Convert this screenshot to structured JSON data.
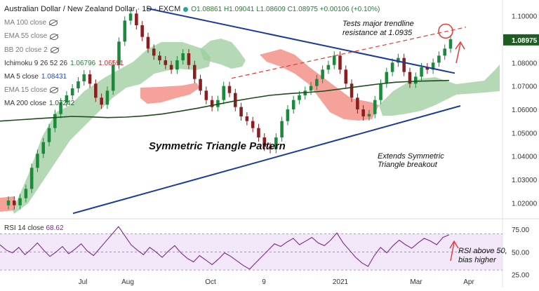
{
  "header": {
    "symbol_title": "Australian Dollar / New Zealand Dollar · 1D · FXCM",
    "ohlc": "O1.08861 H1.09041 L1.08609 C1.08975 +0.00106 (+0.10%)"
  },
  "indicators": [
    {
      "label": "MA 100 close",
      "value": "",
      "hidden": true
    },
    {
      "label": "EMA 55 close",
      "value": "",
      "hidden": true
    },
    {
      "label": "BB 20 close 2",
      "value": "",
      "hidden": true
    },
    {
      "label": "Ichimoku 9 26 52 26",
      "value": "1.06796",
      "value2": "1.06591",
      "hidden": false
    },
    {
      "label": "MA 5 close",
      "value": "1.08431",
      "hidden": false
    },
    {
      "label": "EMA 15 close",
      "value": "",
      "hidden": true
    },
    {
      "label": "MA 200 close",
      "value": "1.07242",
      "hidden": false
    }
  ],
  "rsi": {
    "label": "RSI 14 close",
    "value": "68.62"
  },
  "annotations": {
    "trendline_test": [
      "Tests major trendline",
      "resistance at 1.0935"
    ],
    "pattern": "Symmetric Triangle Pattern",
    "breakout": [
      "Extends Symmetric",
      "Triangle breakout"
    ],
    "rsi_note": [
      "RSI above 50,",
      "bias higher"
    ]
  },
  "colors": {
    "candle_up": "#1b8a3c",
    "candle_down": "#8b1e1e",
    "cloud_bull": "#9ccc9c",
    "cloud_bear": "#f28b82",
    "ma200": "#1b4d1b",
    "trendline": "#1a3a9c",
    "dashed_red": "#e53935",
    "rsi_line": "#7b2a8e",
    "rsi_band": "#ead8f5",
    "price_tag": "#1b5e20"
  },
  "chart_data": [
    {
      "type": "line",
      "title": "Australian Dollar / New Zealand Dollar · 1D · FXCM",
      "x_ticks": [
        "Jul",
        "Aug",
        "Oct",
        "9",
        "2021",
        "Mar",
        "Apr"
      ],
      "y_ticks": [
        "1.10000",
        "1.09000",
        "1.08000",
        "1.07000",
        "1.06000",
        "1.05000",
        "1.04000",
        "1.03000",
        "1.02000"
      ],
      "ylim": [
        1.015,
        1.105
      ],
      "last_price": "1.08975",
      "grid": false,
      "series": [
        {
          "name": "AUD/NZD close",
          "values": [
            1.021,
            1.019,
            1.022,
            1.026,
            1.035,
            1.041,
            1.046,
            1.052,
            1.058,
            1.063,
            1.066,
            1.069,
            1.072,
            1.075,
            1.071,
            1.065,
            1.062,
            1.068,
            1.079,
            1.089,
            1.098,
            1.101,
            1.096,
            1.091,
            1.086,
            1.083,
            1.081,
            1.079,
            1.077,
            1.081,
            1.084,
            1.079,
            1.073,
            1.068,
            1.064,
            1.061,
            1.064,
            1.07,
            1.067,
            1.061,
            1.057,
            1.055,
            1.052,
            1.048,
            1.044,
            1.043,
            1.048,
            1.055,
            1.06,
            1.064,
            1.066,
            1.068,
            1.07,
            1.073,
            1.077,
            1.079,
            1.083,
            1.077,
            1.071,
            1.065,
            1.06,
            1.057,
            1.058,
            1.064,
            1.071,
            1.076,
            1.08,
            1.082,
            1.076,
            1.071,
            1.074,
            1.078,
            1.077,
            1.08,
            1.083,
            1.086,
            1.09
          ]
        },
        {
          "name": "MA 200",
          "values": [
            1.055,
            1.0555,
            1.056,
            1.0565,
            1.057,
            1.0568,
            1.0565,
            1.0567,
            1.0572,
            1.058,
            1.0592,
            1.0605,
            1.062,
            1.0635,
            1.0648,
            1.066,
            1.0667,
            1.0672,
            1.0678,
            1.0688,
            1.0698,
            1.0708,
            1.0716,
            1.072,
            1.0722,
            1.0724
          ]
        }
      ]
    },
    {
      "type": "line",
      "title": "RSI 14 close",
      "y_ticks": [
        "75.00",
        "50.00",
        "25.00"
      ],
      "ylim": [
        20,
        82
      ],
      "reference_lines": [
        70,
        30
      ],
      "grid": false,
      "series": [
        {
          "name": "RSI 14",
          "values": [
            58,
            52,
            49,
            55,
            47,
            53,
            60,
            52,
            45,
            50,
            56,
            48,
            53,
            59,
            51,
            46,
            54,
            62,
            70,
            78,
            68,
            58,
            52,
            47,
            55,
            50,
            44,
            51,
            57,
            49,
            43,
            39,
            46,
            41,
            36,
            42,
            49,
            45,
            40,
            35,
            31,
            38,
            45,
            52,
            59,
            56,
            61,
            65,
            58,
            62,
            66,
            60,
            57,
            63,
            71,
            60,
            52,
            44,
            38,
            34,
            46,
            55,
            49,
            57,
            63,
            58,
            54,
            60,
            65,
            62,
            58,
            66,
            69
          ]
        }
      ]
    }
  ]
}
